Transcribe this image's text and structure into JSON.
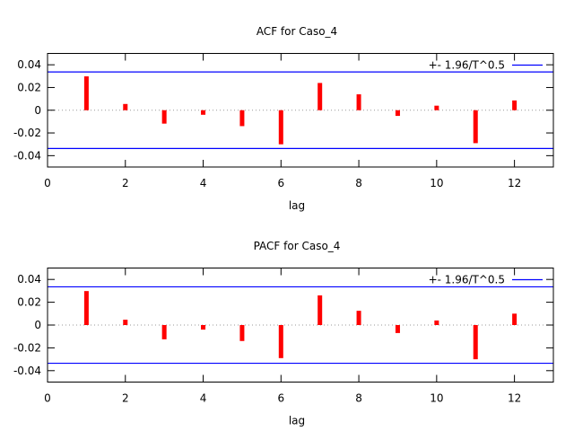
{
  "chart_data": [
    {
      "type": "bar",
      "title": "ACF for Caso_4",
      "xlabel": "lag",
      "ylabel": "",
      "xlim": [
        0,
        13
      ],
      "ylim": [
        -0.05,
        0.05
      ],
      "xticks": [
        0,
        2,
        4,
        6,
        8,
        10,
        12
      ],
      "yticks": [
        0.04,
        0.02,
        0,
        -0.02,
        -0.04
      ],
      "ytick_labels": [
        "0.04",
        "0.02",
        "0",
        "-0.02",
        "-0.04"
      ],
      "lags": [
        1,
        2,
        3,
        4,
        5,
        6,
        7,
        8,
        9,
        10,
        11,
        12
      ],
      "values": [
        0.0298,
        0.0055,
        -0.0118,
        -0.004,
        -0.014,
        -0.03,
        0.024,
        0.014,
        -0.005,
        0.004,
        -0.029,
        0.0086
      ],
      "band": 0.0337,
      "legend": "+- 1.96/T^0.5",
      "legend_position": "top-right",
      "bar_color": "#ff0000",
      "band_color": "#0000ff"
    },
    {
      "type": "bar",
      "title": "PACF for Caso_4",
      "xlabel": "lag",
      "ylabel": "",
      "xlim": [
        0,
        13
      ],
      "ylim": [
        -0.05,
        0.05
      ],
      "xticks": [
        0,
        2,
        4,
        6,
        8,
        10,
        12
      ],
      "yticks": [
        0.04,
        0.02,
        0,
        -0.02,
        -0.04
      ],
      "ytick_labels": [
        "0.04",
        "0.02",
        "0",
        "-0.02",
        "-0.04"
      ],
      "lags": [
        1,
        2,
        3,
        4,
        5,
        6,
        7,
        8,
        9,
        10,
        11,
        12
      ],
      "values": [
        0.0298,
        0.0047,
        -0.0125,
        -0.004,
        -0.014,
        -0.029,
        0.026,
        0.0125,
        -0.007,
        0.004,
        -0.03,
        0.01
      ],
      "band": 0.0335,
      "legend": "+- 1.96/T^0.5",
      "legend_position": "top-right",
      "bar_color": "#ff0000",
      "band_color": "#0000ff"
    }
  ]
}
